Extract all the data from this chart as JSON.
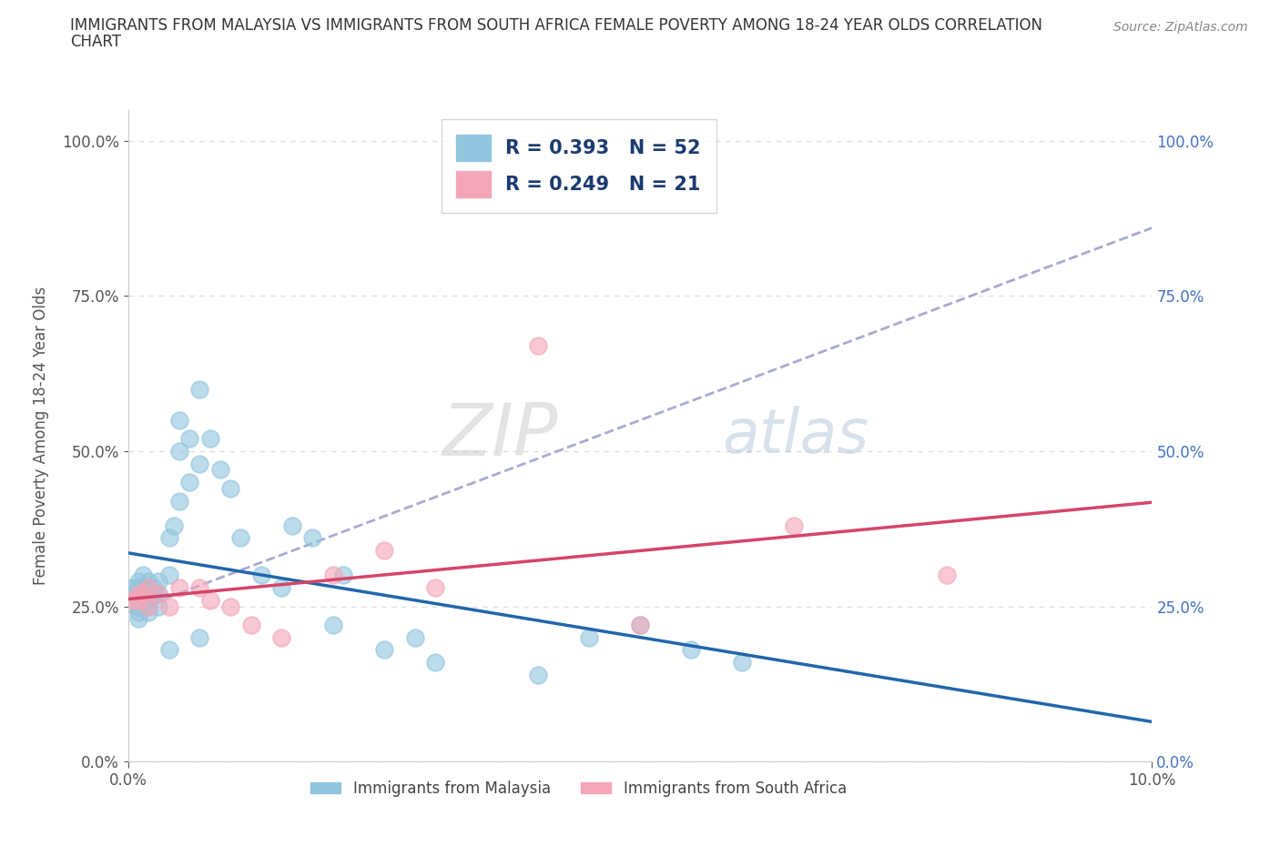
{
  "title_line1": "IMMIGRANTS FROM MALAYSIA VS IMMIGRANTS FROM SOUTH AFRICA FEMALE POVERTY AMONG 18-24 YEAR OLDS CORRELATION",
  "title_line2": "CHART",
  "source": "Source: ZipAtlas.com",
  "ylabel": "Female Poverty Among 18-24 Year Olds",
  "xlim": [
    0.0,
    0.1
  ],
  "ylim": [
    0.0,
    1.05
  ],
  "yticks": [
    0.0,
    0.25,
    0.5,
    0.75,
    1.0
  ],
  "ytick_labels_left": [
    "0.0%",
    "25.0%",
    "50.0%",
    "75.0%",
    "100.0%"
  ],
  "ytick_labels_right": [
    "0.0%",
    "25.0%",
    "50.0%",
    "75.0%",
    "100.0%"
  ],
  "malaysia_R": "0.393",
  "malaysia_N": "52",
  "sa_R": "0.249",
  "sa_N": "21",
  "malaysia_color": "#92c5de",
  "sa_color": "#f4a6b8",
  "malaysia_line_color": "#2166ac",
  "sa_line_color": "#d6446b",
  "trend_line_color": "#a0a0d0",
  "malaysia_x": [
    0.0005,
    0.0005,
    0.001,
    0.001,
    0.001,
    0.001,
    0.001,
    0.001,
    0.001,
    0.0015,
    0.0015,
    0.0015,
    0.002,
    0.002,
    0.002,
    0.002,
    0.002,
    0.0025,
    0.0025,
    0.003,
    0.003,
    0.003,
    0.004,
    0.004,
    0.0045,
    0.005,
    0.005,
    0.005,
    0.006,
    0.006,
    0.007,
    0.007,
    0.008,
    0.009,
    0.01,
    0.011,
    0.013,
    0.015,
    0.016,
    0.018,
    0.02,
    0.021,
    0.025,
    0.028,
    0.03,
    0.04,
    0.045,
    0.05,
    0.055,
    0.06,
    0.007,
    0.004
  ],
  "malaysia_y": [
    0.27,
    0.28,
    0.26,
    0.27,
    0.28,
    0.29,
    0.25,
    0.24,
    0.23,
    0.27,
    0.28,
    0.3,
    0.26,
    0.28,
    0.29,
    0.25,
    0.24,
    0.27,
    0.28,
    0.27,
    0.29,
    0.25,
    0.36,
    0.3,
    0.38,
    0.5,
    0.55,
    0.42,
    0.45,
    0.52,
    0.6,
    0.48,
    0.52,
    0.47,
    0.44,
    0.36,
    0.3,
    0.28,
    0.38,
    0.36,
    0.22,
    0.3,
    0.18,
    0.2,
    0.16,
    0.14,
    0.2,
    0.22,
    0.18,
    0.16,
    0.2,
    0.18
  ],
  "sa_x": [
    0.0005,
    0.001,
    0.001,
    0.0015,
    0.002,
    0.002,
    0.003,
    0.004,
    0.005,
    0.007,
    0.008,
    0.01,
    0.012,
    0.015,
    0.02,
    0.025,
    0.03,
    0.04,
    0.05,
    0.065,
    0.08
  ],
  "sa_y": [
    0.26,
    0.26,
    0.27,
    0.27,
    0.25,
    0.28,
    0.27,
    0.25,
    0.28,
    0.28,
    0.26,
    0.25,
    0.22,
    0.2,
    0.3,
    0.34,
    0.28,
    0.67,
    0.22,
    0.38,
    0.3
  ],
  "watermark_zip": "ZIP",
  "watermark_atlas": "atlas",
  "background_color": "#ffffff",
  "grid_color": "#dddddd",
  "legend_text_color": "#1a3a70",
  "right_axis_color": "#4472c4"
}
